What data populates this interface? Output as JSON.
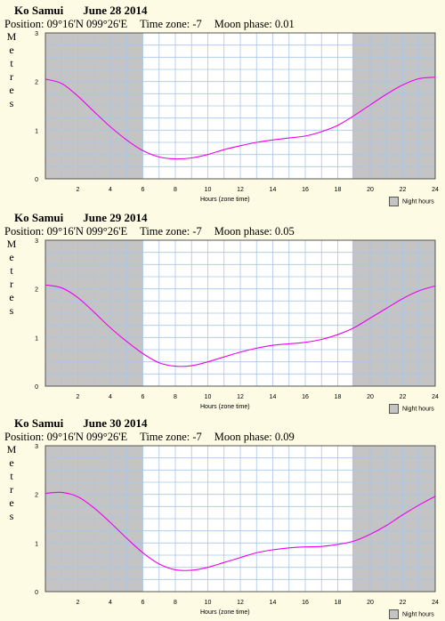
{
  "colors": {
    "background": "#fdfbe3",
    "night": "#c4c4c4",
    "day": "#ffffff",
    "grid": "#a8c6ea",
    "curve": "#ee00ee"
  },
  "panels": [
    {
      "place": "Ko Samui",
      "date": "June 28 2014",
      "position": "Position: 09°16'N 099°26'E",
      "timezone": "Time zone: -7",
      "moon": "Moon phase: 0.01"
    },
    {
      "place": "Ko Samui",
      "date": "June 29 2014",
      "position": "Position: 09°16'N 099°26'E",
      "timezone": "Time zone: -7",
      "moon": "Moon phase: 0.05"
    },
    {
      "place": "Ko Samui",
      "date": "June 30 2014",
      "position": "Position: 09°16'N 099°26'E",
      "timezone": "Time zone: -7",
      "moon": "Moon phase: 0.09"
    }
  ],
  "ylabel_letters": [
    "M",
    "e",
    "t",
    "r",
    "e",
    "s"
  ],
  "xlabel": "Hours (zone time)",
  "legend_label": "Night hours",
  "chart_data": [
    {
      "type": "line",
      "title": "Ko Samui June 28 2014",
      "xlabel": "Hours (zone time)",
      "ylabel": "Metres",
      "xlim": [
        0,
        24
      ],
      "ylim": [
        0,
        3
      ],
      "xticks": [
        "2",
        "4",
        "6",
        "8",
        "10",
        "12",
        "14",
        "16",
        "18",
        "20",
        "22",
        "24"
      ],
      "yticks": [
        "0",
        "1",
        "2",
        "3"
      ],
      "grid": true,
      "legend": "bottom-right",
      "night_hours": [
        [
          0,
          6
        ],
        [
          18.9,
          24
        ]
      ],
      "x": [
        0,
        1,
        2,
        3,
        4,
        5,
        6,
        7,
        8,
        9,
        10,
        11,
        12,
        13,
        14,
        15,
        16,
        17,
        18,
        19,
        20,
        21,
        22,
        23,
        24
      ],
      "series": [
        {
          "values": [
            2.05,
            1.96,
            1.7,
            1.38,
            1.07,
            0.8,
            0.58,
            0.45,
            0.41,
            0.43,
            0.5,
            0.6,
            0.68,
            0.75,
            0.8,
            0.84,
            0.88,
            0.97,
            1.1,
            1.3,
            1.52,
            1.74,
            1.93,
            2.06,
            2.09
          ]
        }
      ]
    },
    {
      "type": "line",
      "title": "Ko Samui June 29 2014",
      "xlabel": "Hours (zone time)",
      "ylabel": "Metres",
      "xlim": [
        0,
        24
      ],
      "ylim": [
        0,
        3
      ],
      "xticks": [
        "2",
        "4",
        "6",
        "8",
        "10",
        "12",
        "14",
        "16",
        "18",
        "20",
        "22",
        "24"
      ],
      "yticks": [
        "0",
        "1",
        "2",
        "3"
      ],
      "grid": true,
      "legend": "bottom-right",
      "night_hours": [
        [
          0,
          6
        ],
        [
          18.9,
          24
        ]
      ],
      "x": [
        0,
        1,
        2,
        3,
        4,
        5,
        6,
        7,
        8,
        9,
        10,
        11,
        12,
        13,
        14,
        15,
        16,
        17,
        18,
        19,
        20,
        21,
        22,
        23,
        24
      ],
      "series": [
        {
          "values": [
            2.08,
            2.02,
            1.82,
            1.52,
            1.2,
            0.92,
            0.67,
            0.48,
            0.41,
            0.42,
            0.5,
            0.6,
            0.7,
            0.78,
            0.84,
            0.87,
            0.9,
            0.96,
            1.06,
            1.2,
            1.4,
            1.6,
            1.8,
            1.96,
            2.06
          ]
        }
      ]
    },
    {
      "type": "line",
      "title": "Ko Samui June 30 2014",
      "xlabel": "Hours (zone time)",
      "ylabel": "Metres",
      "xlim": [
        0,
        24
      ],
      "ylim": [
        0,
        3
      ],
      "xticks": [
        "2",
        "4",
        "6",
        "8",
        "10",
        "12",
        "14",
        "16",
        "18",
        "20",
        "22",
        "24"
      ],
      "yticks": [
        "0",
        "1",
        "2",
        "3"
      ],
      "grid": true,
      "legend": "bottom-right",
      "night_hours": [
        [
          0,
          6
        ],
        [
          18.9,
          24
        ]
      ],
      "x": [
        0,
        1,
        2,
        3,
        4,
        5,
        6,
        7,
        8,
        9,
        10,
        11,
        12,
        13,
        14,
        15,
        16,
        17,
        18,
        19,
        20,
        21,
        22,
        23,
        24
      ],
      "series": [
        {
          "values": [
            2.02,
            2.04,
            1.95,
            1.72,
            1.42,
            1.1,
            0.8,
            0.57,
            0.45,
            0.44,
            0.5,
            0.6,
            0.7,
            0.8,
            0.86,
            0.9,
            0.92,
            0.93,
            0.97,
            1.04,
            1.18,
            1.36,
            1.58,
            1.78,
            1.96
          ]
        }
      ]
    }
  ]
}
